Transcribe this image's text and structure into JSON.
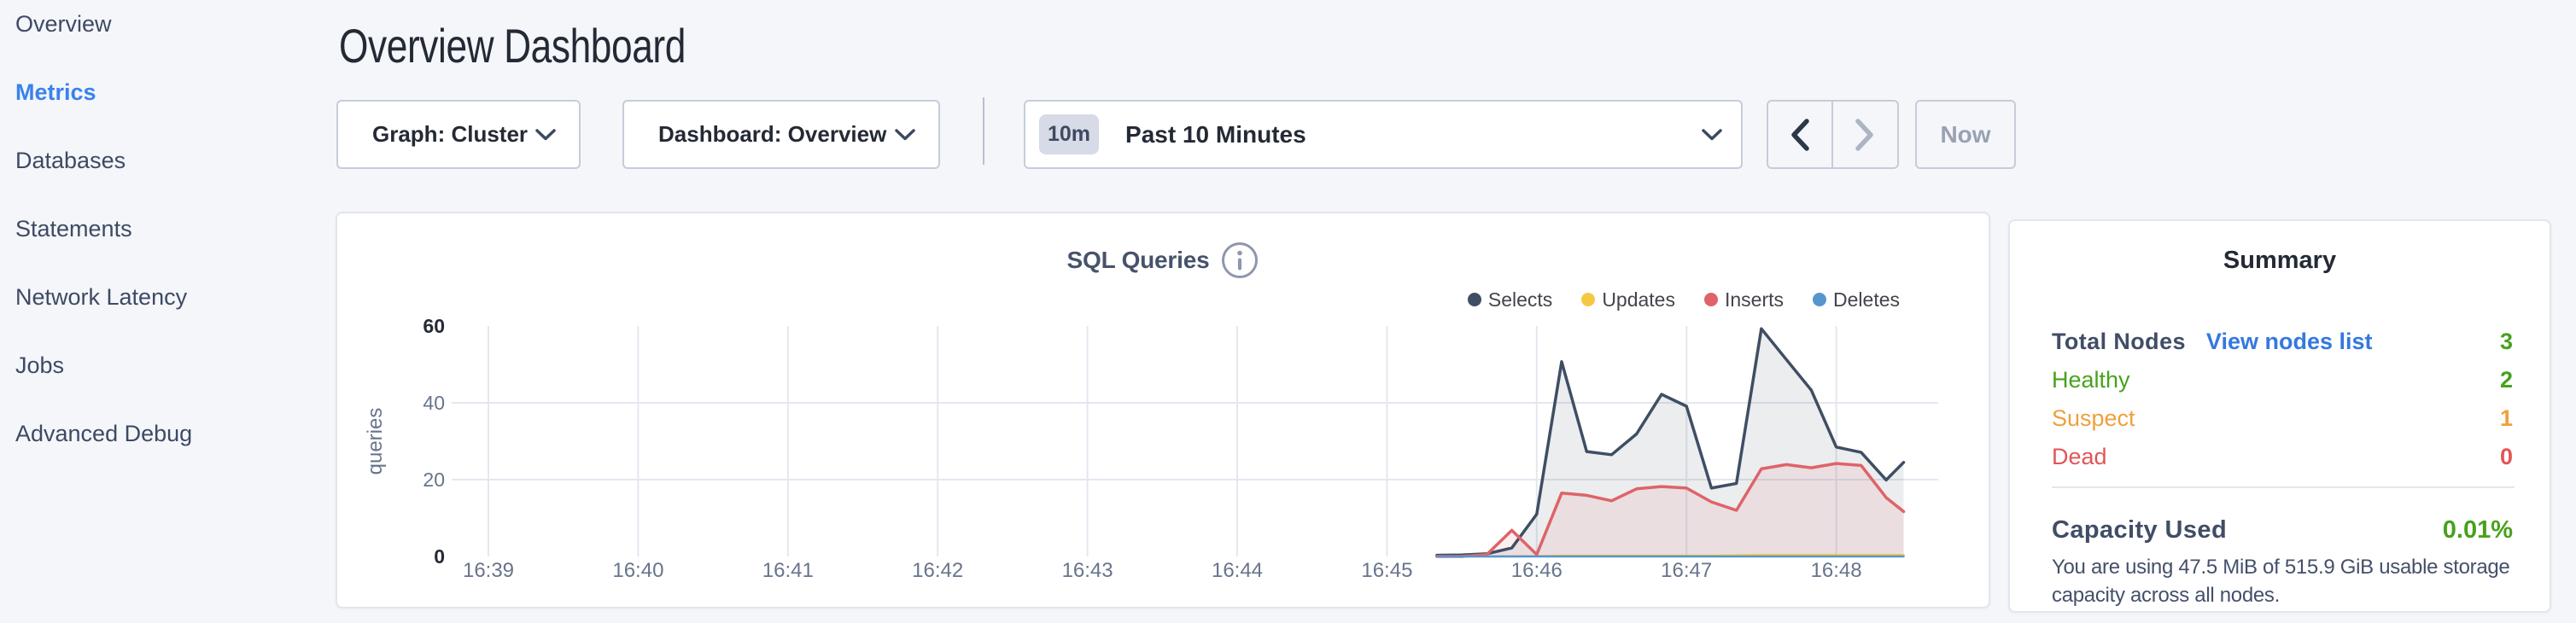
{
  "sidebar": {
    "items": [
      {
        "label": "Overview",
        "active": false
      },
      {
        "label": "Metrics",
        "active": true
      },
      {
        "label": "Databases",
        "active": false
      },
      {
        "label": "Statements",
        "active": false
      },
      {
        "label": "Network Latency",
        "active": false
      },
      {
        "label": "Jobs",
        "active": false
      },
      {
        "label": "Advanced Debug",
        "active": false
      }
    ]
  },
  "header": {
    "title": "Overview Dashboard"
  },
  "toolbar": {
    "graph_dropdown": {
      "label": "Graph: Cluster"
    },
    "dashboard_dropdown": {
      "label": "Dashboard: Overview"
    },
    "time_window": {
      "badge": "10m",
      "label": "Past 10 Minutes"
    },
    "now_button": {
      "label": "Now"
    }
  },
  "chart_data": {
    "type": "area",
    "title": "SQL Queries",
    "info_icon": "info-circle",
    "ylabel": "queries",
    "ylim": [
      0,
      60
    ],
    "y_ticks": [
      0,
      20,
      40,
      60
    ],
    "y_ticks_bold": [
      0,
      60
    ],
    "x_tick_labels": [
      "16:39",
      "16:40",
      "16:41",
      "16:42",
      "16:43",
      "16:44",
      "16:45",
      "16:46",
      "16:47",
      "16:48"
    ],
    "x_axis_note": "t = seconds after 16:45:00; one tick per minute",
    "t": [
      20,
      30,
      40,
      50,
      60,
      70,
      80,
      90,
      100,
      110,
      120,
      130,
      140,
      150,
      160,
      170,
      180,
      190,
      200,
      207
    ],
    "series": [
      {
        "name": "Selects",
        "color": "#3f4e63",
        "fill": "rgba(63,78,99,0.10)",
        "line_width": 3.5,
        "values": [
          0.3,
          0.4,
          0.7,
          2.2,
          11,
          50.7,
          27.3,
          26.5,
          31.9,
          42.2,
          39.1,
          17.8,
          19,
          59.3,
          51.3,
          43.3,
          28.5,
          27.1,
          19.9,
          24.5
        ]
      },
      {
        "name": "Updates",
        "color": "#f5c844",
        "fill": "rgba(245,200,68,0.10)",
        "line_width": 2.5,
        "values": [
          0,
          0,
          0,
          0,
          0.1,
          0.2,
          0.2,
          0.2,
          0.2,
          0.2,
          0.2,
          0.2,
          0.3,
          0.4,
          0.4,
          0.4,
          0.4,
          0.4,
          0.4,
          0.4
        ]
      },
      {
        "name": "Inserts",
        "color": "#df6368",
        "fill": "rgba(223,99,104,0.10)",
        "line_width": 3.5,
        "values": [
          0,
          0,
          0.5,
          6.8,
          0.5,
          16.5,
          15.9,
          14.5,
          17.6,
          18.2,
          17.8,
          14.2,
          12,
          22.8,
          23.9,
          23.1,
          24.2,
          23.7,
          15.3,
          11.7
        ]
      },
      {
        "name": "Deletes",
        "color": "#5795cd",
        "fill": "rgba(87,149,205,0.10)",
        "line_width": 2.5,
        "values": [
          0,
          0,
          0,
          0,
          0,
          0,
          0,
          0,
          0,
          0,
          0,
          0,
          0,
          0,
          0,
          0,
          0,
          0,
          0,
          0
        ]
      }
    ],
    "legend_position": "top-right",
    "grid": {
      "h_lines_at": [
        20,
        40
      ],
      "v_lines": "one per x tick"
    }
  },
  "summary": {
    "title": "Summary",
    "rows": [
      {
        "label": "Total Nodes",
        "link": "View nodes list",
        "value": "3",
        "label_color": "#414d66",
        "value_color": "#48a11d",
        "bold": true
      },
      {
        "label": "Healthy",
        "value": "2",
        "label_color": "#48a11d",
        "value_color": "#48a11d",
        "bold": false
      },
      {
        "label": "Suspect",
        "value": "1",
        "label_color": "#efa03d",
        "value_color": "#efa03d",
        "bold": false
      },
      {
        "label": "Dead",
        "value": "0",
        "label_color": "#e25459",
        "value_color": "#e25459",
        "bold": false
      }
    ],
    "capacity": {
      "label": "Capacity Used",
      "value": "0.01%",
      "value_color": "#48a11d"
    },
    "description": "You are using 47.5 MiB of 515.9 GiB usable storage capacity across all nodes."
  }
}
